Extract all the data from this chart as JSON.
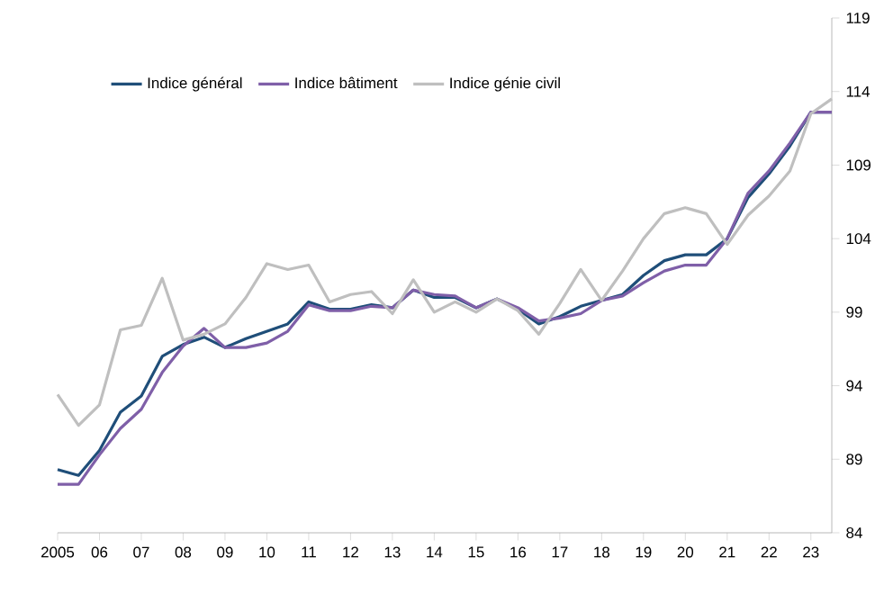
{
  "chart_data": {
    "type": "line",
    "x": [
      2005,
      2005.5,
      2006,
      2006.5,
      2007,
      2007.5,
      2008,
      2008.5,
      2009,
      2009.5,
      2010,
      2010.5,
      2011,
      2011.5,
      2012,
      2012.5,
      2013,
      2013.5,
      2014,
      2014.5,
      2015,
      2015.5,
      2016,
      2016.5,
      2017,
      2017.5,
      2018,
      2018.5,
      2019,
      2019.5,
      2020,
      2020.5,
      2021,
      2021.5,
      2022,
      2022.5,
      2023,
      2023.5
    ],
    "series": [
      {
        "name": "Indice général",
        "color": "#1f4e79",
        "values": [
          88.3,
          87.9,
          89.6,
          92.2,
          93.3,
          96.0,
          96.8,
          97.3,
          96.6,
          97.2,
          97.7,
          98.2,
          99.7,
          99.2,
          99.2,
          99.5,
          99.3,
          100.5,
          100.0,
          100.0,
          99.3,
          99.9,
          99.2,
          98.2,
          98.7,
          99.4,
          99.8,
          100.2,
          101.5,
          102.5,
          102.9,
          102.9,
          104.0,
          106.8,
          108.4,
          110.3,
          112.6,
          112.6
        ]
      },
      {
        "name": "Indice bâtiment",
        "color": "#7f5fa8",
        "values": [
          87.3,
          87.3,
          89.3,
          91.1,
          92.4,
          94.9,
          96.7,
          97.9,
          96.6,
          96.6,
          96.9,
          97.7,
          99.5,
          99.1,
          99.1,
          99.4,
          99.3,
          100.5,
          100.2,
          100.1,
          99.3,
          99.9,
          99.3,
          98.4,
          98.6,
          98.9,
          99.8,
          100.1,
          101.0,
          101.8,
          102.2,
          102.2,
          104.0,
          107.1,
          108.6,
          110.5,
          112.6,
          112.6
        ]
      },
      {
        "name": "Indice génie civil",
        "color": "#bfbfbf",
        "values": [
          93.4,
          91.3,
          92.7,
          97.8,
          98.1,
          101.3,
          97.1,
          97.5,
          98.2,
          100.0,
          102.3,
          101.9,
          102.2,
          99.7,
          100.2,
          100.4,
          98.9,
          101.2,
          99.0,
          99.7,
          99.0,
          99.9,
          99.1,
          97.5,
          99.6,
          101.9,
          99.8,
          101.8,
          104.0,
          105.7,
          106.1,
          105.7,
          103.6,
          105.6,
          106.9,
          108.6,
          112.5,
          113.5
        ]
      }
    ],
    "xlim": [
      2005,
      2023.5
    ],
    "xticks": [
      {
        "value": 2005,
        "label": "2005"
      },
      {
        "value": 2006,
        "label": "06"
      },
      {
        "value": 2007,
        "label": "07"
      },
      {
        "value": 2008,
        "label": "08"
      },
      {
        "value": 2009,
        "label": "09"
      },
      {
        "value": 2010,
        "label": "10"
      },
      {
        "value": 2011,
        "label": "11"
      },
      {
        "value": 2012,
        "label": "12"
      },
      {
        "value": 2013,
        "label": "13"
      },
      {
        "value": 2014,
        "label": "14"
      },
      {
        "value": 2015,
        "label": "15"
      },
      {
        "value": 2016,
        "label": "16"
      },
      {
        "value": 2017,
        "label": "17"
      },
      {
        "value": 2018,
        "label": "18"
      },
      {
        "value": 2019,
        "label": "19"
      },
      {
        "value": 2020,
        "label": "20"
      },
      {
        "value": 2021,
        "label": "21"
      },
      {
        "value": 2022,
        "label": "22"
      },
      {
        "value": 2023,
        "label": "23"
      }
    ],
    "ylim": [
      84,
      119
    ],
    "yticks": [
      84,
      89,
      94,
      99,
      104,
      109,
      114,
      119
    ],
    "grid": false,
    "legend": "top left",
    "marker": "none",
    "line_style": "solid"
  }
}
